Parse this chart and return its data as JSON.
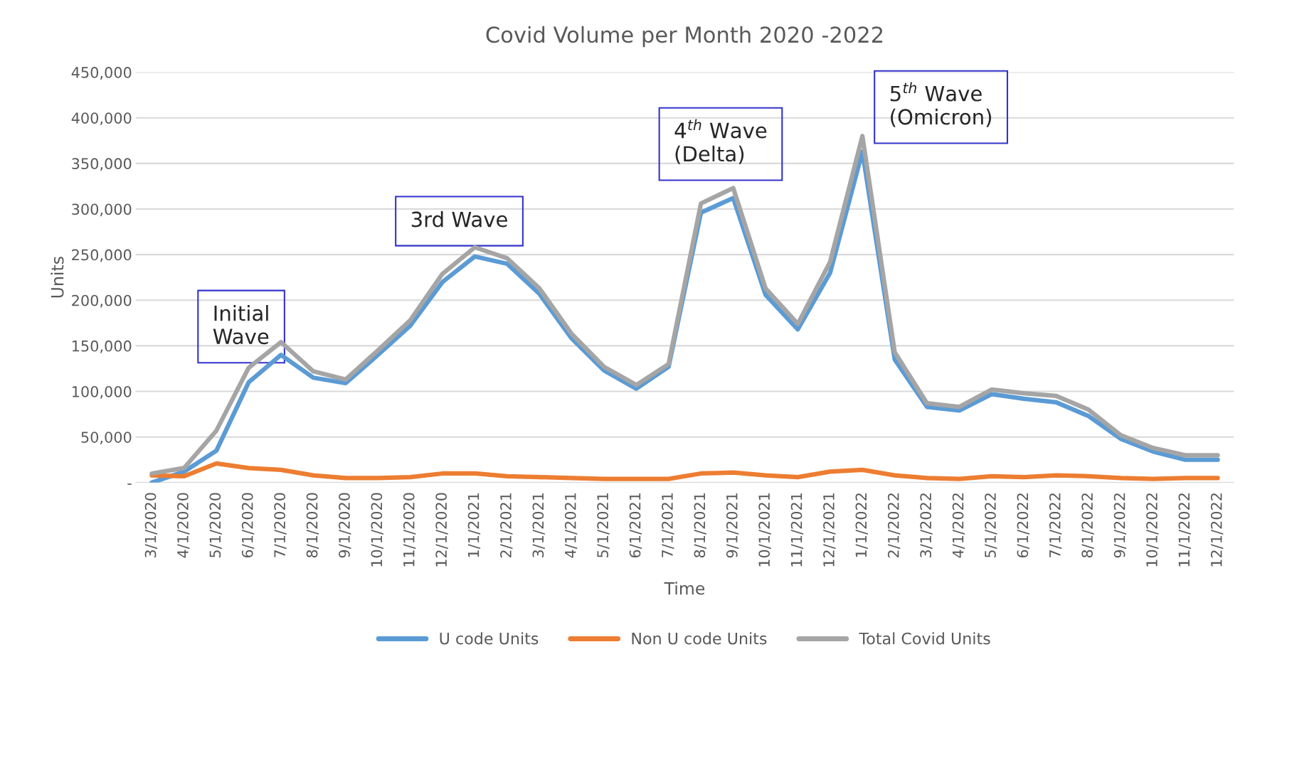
{
  "chart_data": {
    "type": "line",
    "title": "Covid Volume per Month 2020 -2022",
    "xlabel": "Time",
    "ylabel": "Units",
    "categories": [
      "3/1/2020",
      "4/1/2020",
      "5/1/2020",
      "6/1/2020",
      "7/1/2020",
      "8/1/2020",
      "9/1/2020",
      "10/1/2020",
      "11/1/2020",
      "12/1/2020",
      "1/1/2021",
      "2/1/2021",
      "3/1/2021",
      "4/1/2021",
      "5/1/2021",
      "6/1/2021",
      "7/1/2021",
      "8/1/2021",
      "9/1/2021",
      "10/1/2021",
      "11/1/2021",
      "12/1/2021",
      "1/1/2022",
      "2/1/2022",
      "3/1/2022",
      "4/1/2022",
      "5/1/2022",
      "6/1/2022",
      "7/1/2022",
      "8/1/2022",
      "9/1/2022",
      "10/1/2022",
      "11/1/2022",
      "12/1/2022"
    ],
    "series": [
      {
        "name": "U code Units",
        "color": "#5b9bd5",
        "values": [
          0,
          12000,
          35000,
          110000,
          140000,
          115000,
          109000,
          140000,
          172000,
          220000,
          248000,
          240000,
          207000,
          158000,
          123000,
          103000,
          127000,
          296000,
          312000,
          206000,
          168000,
          230000,
          363000,
          135000,
          83000,
          79000,
          97000,
          92000,
          88000,
          73000,
          48000,
          34000,
          25000,
          25000
        ]
      },
      {
        "name": "Non U code Units",
        "color": "#ed7d31",
        "values": [
          8000,
          7000,
          21000,
          16000,
          14000,
          8000,
          5000,
          5000,
          6000,
          10000,
          10000,
          7000,
          6000,
          5000,
          4000,
          4000,
          4000,
          10000,
          11000,
          8000,
          6000,
          12000,
          14000,
          8000,
          5000,
          4000,
          7000,
          6000,
          8000,
          7000,
          5000,
          4000,
          5000,
          5000
        ]
      },
      {
        "name": "Total Covid Units",
        "color": "#a5a5a5",
        "values": [
          10000,
          16000,
          57000,
          126000,
          154000,
          122000,
          113000,
          145000,
          178000,
          229000,
          258000,
          246000,
          213000,
          163000,
          127000,
          107000,
          130000,
          306000,
          323000,
          213000,
          174000,
          242000,
          380000,
          143000,
          87000,
          83000,
          102000,
          98000,
          95000,
          80000,
          52000,
          38000,
          30000,
          30000
        ]
      }
    ],
    "ylim": [
      0,
      450000
    ],
    "yticks": [
      {
        "value": 0,
        "label": "-"
      },
      {
        "value": 50000,
        "label": "50,000"
      },
      {
        "value": 100000,
        "label": "100,000"
      },
      {
        "value": 150000,
        "label": "150,000"
      },
      {
        "value": 200000,
        "label": "200,000"
      },
      {
        "value": 250000,
        "label": "250,000"
      },
      {
        "value": 300000,
        "label": "300,000"
      },
      {
        "value": 350000,
        "label": "350,000"
      },
      {
        "value": 400000,
        "label": "400,000"
      },
      {
        "value": 450000,
        "label": "450,000"
      }
    ],
    "grid": "y",
    "legend": "bottom",
    "marker": "none",
    "line_style": "solid",
    "annotations": [
      "Initial\nWave",
      "3rd Wave",
      "4$^{th}$ Wave\n(Delta)",
      "5$^{th}$ Wave\n(Omicron)"
    ]
  }
}
